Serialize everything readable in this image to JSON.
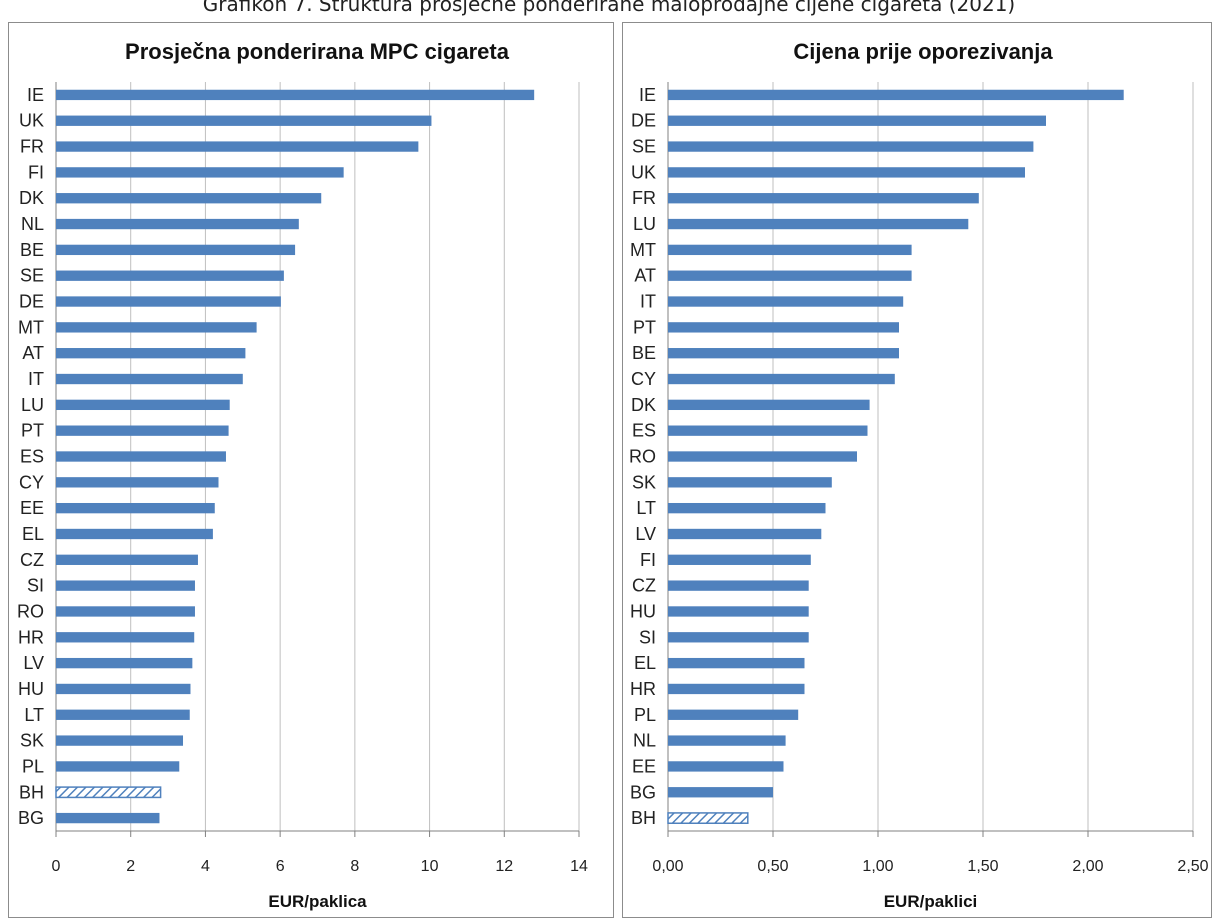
{
  "caption": "Grafikon 7. Struktura prosječne ponderirane maloprodajne cijene cigareta (2021)",
  "colors": {
    "bar": "#4f81bd",
    "grid": "#bfbfbf",
    "axis": "#808080"
  },
  "chart_data": [
    {
      "type": "bar",
      "orientation": "horizontal",
      "title": "Prosječna ponderirana MPC cigareta",
      "xlabel": "EUR/paklica",
      "xlim": [
        0,
        14
      ],
      "xticks": [
        0,
        2,
        4,
        6,
        8,
        10,
        12,
        14
      ],
      "xtick_labels": [
        "0",
        "2",
        "4",
        "6",
        "8",
        "10",
        "12",
        "14"
      ],
      "grid": true,
      "highlight": "BH",
      "categories": [
        "IE",
        "UK",
        "FR",
        "FI",
        "DK",
        "NL",
        "BE",
        "SE",
        "DE",
        "MT",
        "AT",
        "IT",
        "LU",
        "PT",
        "ES",
        "CY",
        "EE",
        "EL",
        "CZ",
        "SI",
        "RO",
        "HR",
        "LV",
        "HU",
        "LT",
        "SK",
        "PL",
        "BH",
        "BG"
      ],
      "values": [
        12.8,
        10.05,
        9.7,
        7.7,
        7.1,
        6.5,
        6.4,
        6.1,
        6.02,
        5.37,
        5.07,
        5.0,
        4.65,
        4.62,
        4.55,
        4.35,
        4.25,
        4.2,
        3.8,
        3.72,
        3.72,
        3.7,
        3.65,
        3.6,
        3.58,
        3.4,
        3.3,
        2.8,
        2.77
      ]
    },
    {
      "type": "bar",
      "orientation": "horizontal",
      "title": "Cijena prije oporezivanja",
      "xlabel": "EUR/paklici",
      "xlim": [
        0,
        2.5
      ],
      "xticks": [
        0,
        0.5,
        1,
        1.5,
        2,
        2.5
      ],
      "xtick_labels": [
        "0,00",
        "0,50",
        "1,00",
        "1,50",
        "2,00",
        "2,50"
      ],
      "grid": true,
      "highlight": "BH",
      "categories": [
        "IE",
        "DE",
        "SE",
        "UK",
        "FR",
        "LU",
        "MT",
        "AT",
        "IT",
        "PT",
        "BE",
        "CY",
        "DK",
        "ES",
        "RO",
        "SK",
        "LT",
        "LV",
        "FI",
        "CZ",
        "HU",
        "SI",
        "EL",
        "HR",
        "PL",
        "NL",
        "EE",
        "BG",
        "BH"
      ],
      "values": [
        2.17,
        1.8,
        1.74,
        1.7,
        1.48,
        1.43,
        1.16,
        1.16,
        1.12,
        1.1,
        1.1,
        1.08,
        0.96,
        0.95,
        0.9,
        0.78,
        0.75,
        0.73,
        0.68,
        0.67,
        0.67,
        0.67,
        0.65,
        0.65,
        0.62,
        0.56,
        0.55,
        0.5,
        0.38
      ]
    }
  ]
}
